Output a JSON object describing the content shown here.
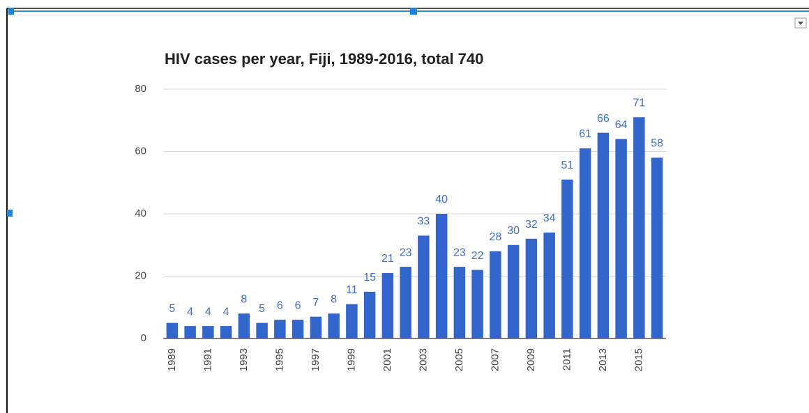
{
  "chart_data": {
    "type": "bar",
    "title": "HIV cases per year, Fiji, 1989-2016, total 740",
    "categories": [
      "1989",
      null,
      "1991",
      null,
      "1993",
      null,
      "1995",
      null,
      "1997",
      null,
      "1999",
      null,
      "2001",
      null,
      "2003",
      null,
      "2005",
      null,
      "2007",
      null,
      "2009",
      null,
      "2011",
      null,
      "2013",
      null,
      "2015",
      null
    ],
    "values": [
      5,
      4,
      4,
      4,
      8,
      5,
      6,
      6,
      7,
      8,
      11,
      15,
      21,
      23,
      33,
      40,
      23,
      22,
      28,
      30,
      32,
      34,
      51,
      61,
      66,
      64,
      71,
      58
    ],
    "color": "#3366cc",
    "ylim": [
      0,
      80
    ],
    "yticks": [
      0,
      20,
      40,
      60,
      80
    ],
    "grid": true
  }
}
